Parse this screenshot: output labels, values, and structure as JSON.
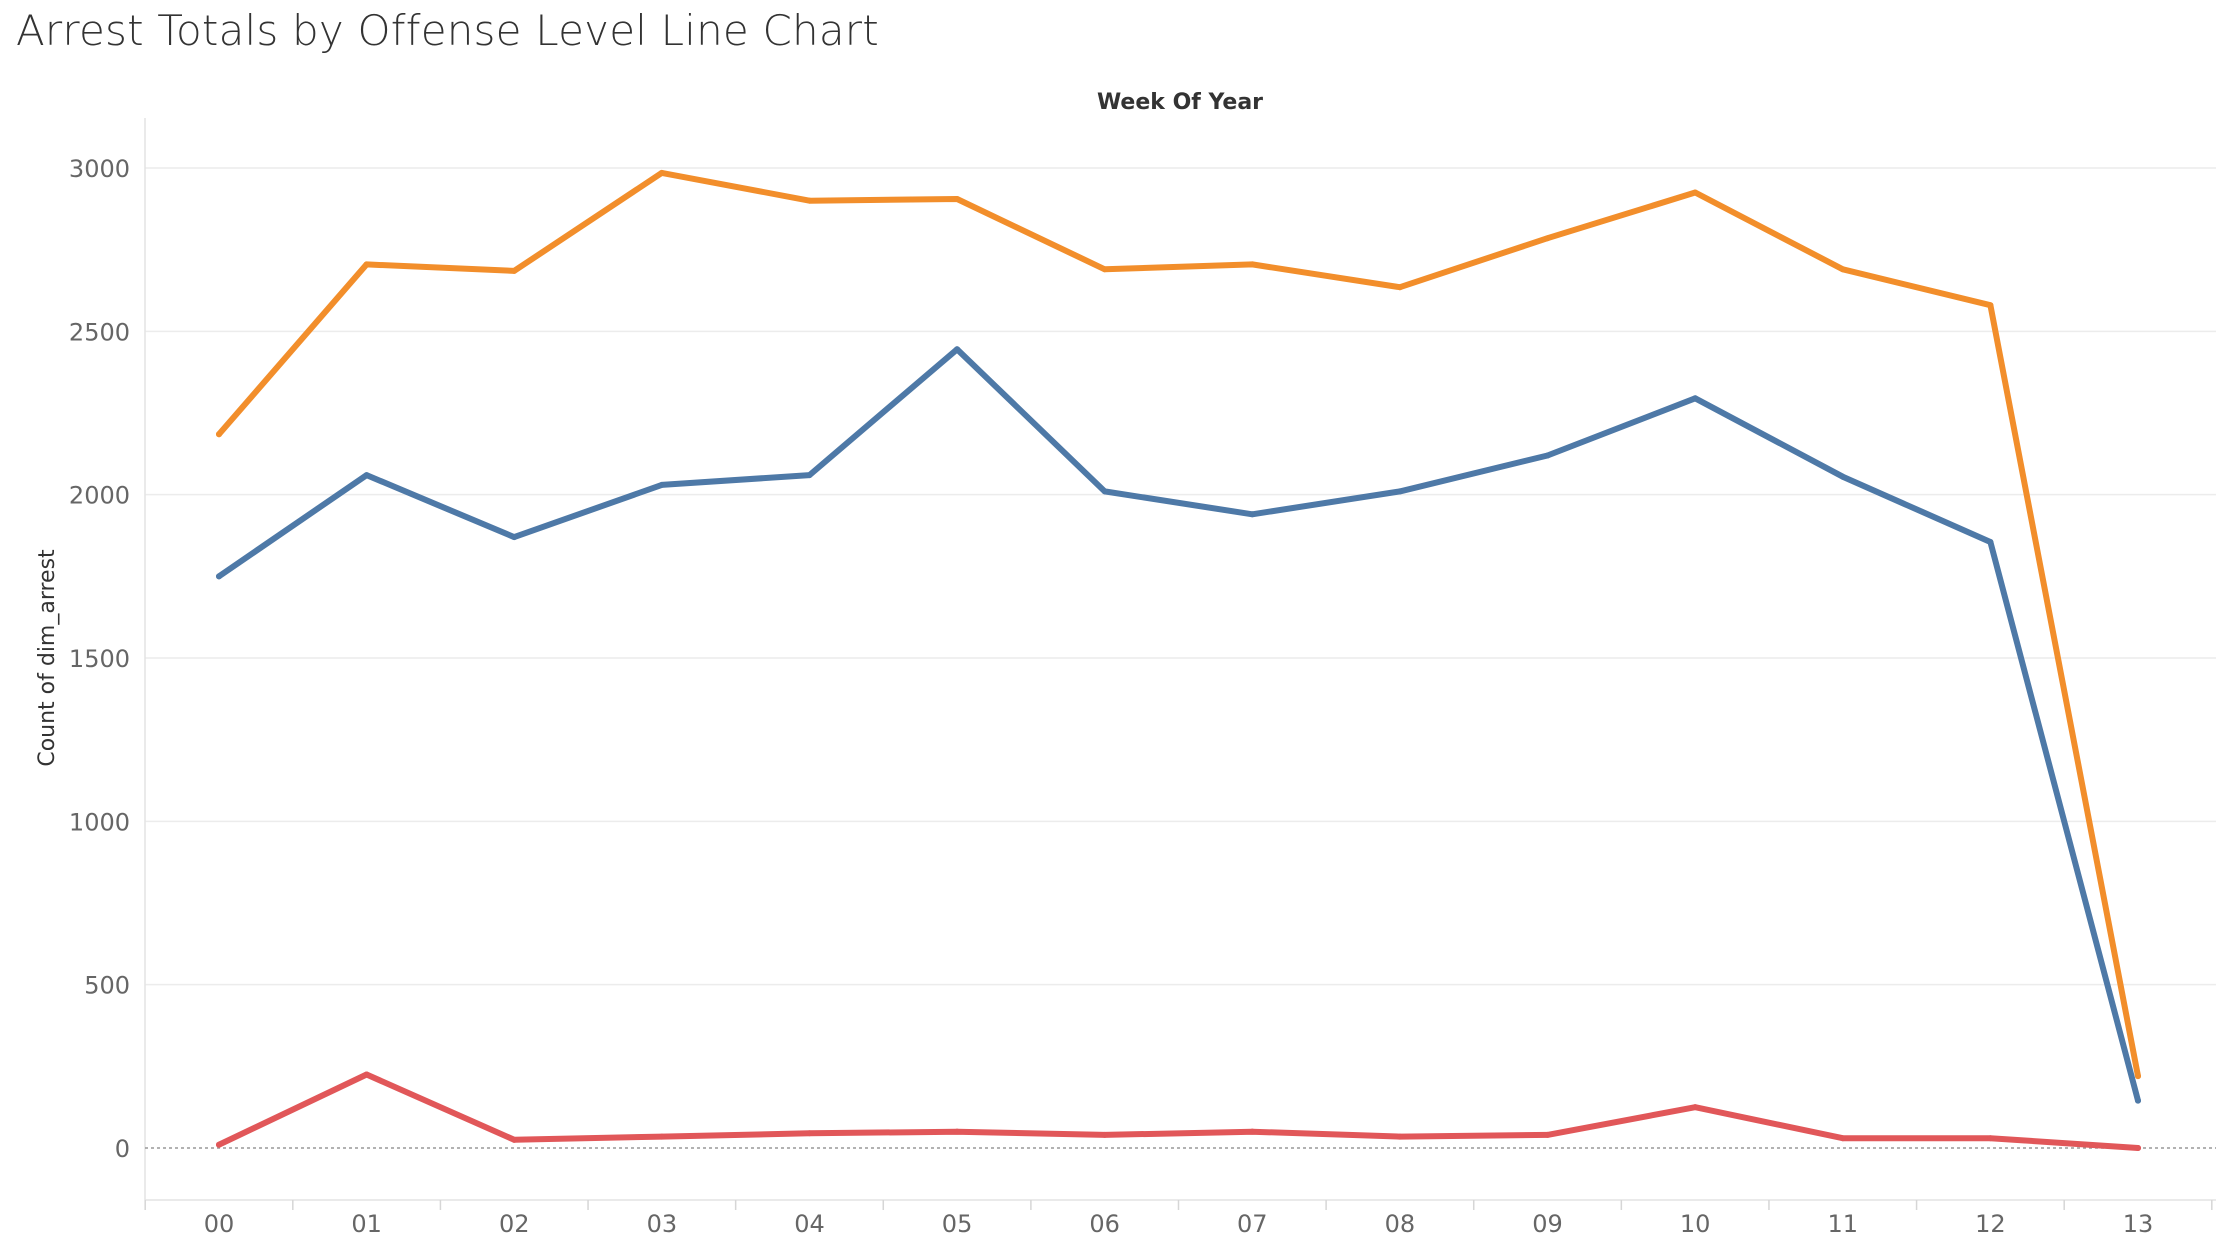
{
  "title": "Arrest Totals by Offense Level Line Chart",
  "chart_data": {
    "type": "line",
    "title": "Arrest Totals by Offense Level Line Chart",
    "xlabel": "Week Of Year",
    "ylabel": "Count of dim_arrest",
    "categories": [
      "00",
      "01",
      "02",
      "03",
      "04",
      "05",
      "06",
      "07",
      "08",
      "09",
      "10",
      "11",
      "12",
      "13"
    ],
    "yticks": [
      0,
      500,
      1000,
      1500,
      2000,
      2500,
      3000
    ],
    "ylim": [
      -160,
      3140
    ],
    "grid": "horizontal",
    "legend": "none",
    "zero_line": "dotted",
    "series": [
      {
        "color": "#f28e2b",
        "values": [
          2185,
          2705,
          2685,
          2985,
          2900,
          2905,
          2690,
          2705,
          2635,
          2785,
          2925,
          2690,
          2580,
          220
        ]
      },
      {
        "color": "#4e79a7",
        "values": [
          1750,
          2060,
          1870,
          2030,
          2060,
          2445,
          2010,
          1940,
          2010,
          2120,
          2295,
          2055,
          1855,
          145
        ]
      },
      {
        "color": "#e15759",
        "values": [
          10,
          225,
          25,
          35,
          45,
          50,
          40,
          50,
          35,
          40,
          125,
          30,
          30,
          0
        ]
      }
    ]
  }
}
